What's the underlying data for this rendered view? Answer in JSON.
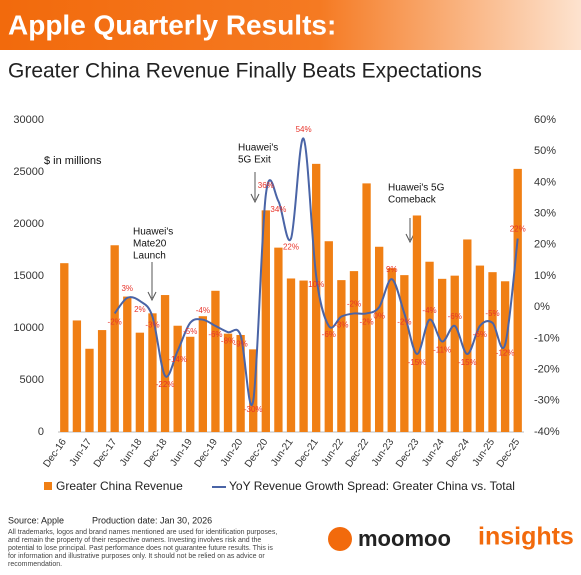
{
  "header": {
    "title": "Apple Quarterly Results:",
    "subtitle": "Greater China Revenue Finally Beats Expectations"
  },
  "chart_data": {
    "type": "bar_line",
    "y_axis_label": "$ in millions",
    "categories": [
      "Dec-16",
      null,
      "Jun-17",
      null,
      "Dec-17",
      null,
      "Jun-18",
      null,
      "Dec-18",
      null,
      "Jun-19",
      null,
      "Dec-19",
      null,
      "Jun-20",
      null,
      "Dec-20",
      null,
      "Jun-21",
      null,
      "Dec-21",
      null,
      "Jun-22",
      null,
      "Dec-22",
      null,
      "Jun-23",
      null,
      "Dec-23",
      null,
      "Jun-24",
      null,
      "Dec-24",
      null,
      "Jun-25",
      null,
      "Dec-25"
    ],
    "ylim": [
      0,
      30000
    ],
    "yticks": [
      0,
      5000,
      10000,
      15000,
      20000,
      25000,
      30000
    ],
    "y2lim": [
      -40,
      60
    ],
    "y2ticks": [
      {
        "value": -40,
        "label": "-40%"
      },
      {
        "value": -30,
        "label": "-30%"
      },
      {
        "value": -20,
        "label": "-20%"
      },
      {
        "value": -10,
        "label": "-10%"
      },
      {
        "value": 0,
        "label": "0%"
      },
      {
        "value": 10,
        "label": "10%"
      },
      {
        "value": 20,
        "label": "20%"
      },
      {
        "value": 30,
        "label": "30%"
      },
      {
        "value": 40,
        "label": "40%"
      },
      {
        "value": 50,
        "label": "50%"
      },
      {
        "value": 60,
        "label": "60%"
      }
    ],
    "series": [
      {
        "name": "Greater China Revenue",
        "type": "bar",
        "color": "#f07f14",
        "values": [
          16233,
          10726,
          8004,
          9801,
          17956,
          13024,
          9551,
          11411,
          13169,
          10218,
          9157,
          11134,
          13578,
          9455,
          9329,
          7946,
          21313,
          17728,
          14762,
          14563,
          25783,
          18343,
          14604,
          15470,
          23905,
          17812,
          15758,
          15084,
          20819,
          16372,
          14728,
          15033,
          18513,
          16002,
          15369,
          14493,
          25300
        ]
      },
      {
        "name": "YoY Revenue Growth Spread: Greater China vs. Total",
        "type": "line",
        "axis": "y2",
        "color": "#4a64a6",
        "values": [
          null,
          null,
          null,
          null,
          -2,
          3,
          2,
          -3,
          -22,
          -14,
          -5,
          -4,
          -6,
          -8,
          -9,
          -30,
          36,
          34,
          22,
          54,
          10,
          -6,
          -3,
          -2,
          -2,
          0,
          9,
          -2,
          -15,
          -4,
          -11,
          -6,
          -15,
          -6,
          -5,
          -12,
          22
        ],
        "value_labels": [
          null,
          null,
          null,
          null,
          "-2%",
          "3%",
          "2%",
          "-3%",
          "-22%",
          "-14%",
          "-5%",
          "-4%",
          "-6%",
          "-8%",
          "-9%",
          "-30%",
          "36%",
          "34%",
          "22%",
          "54%",
          "10%",
          "-6%",
          "-3%",
          "-2%",
          "-2%",
          "0%",
          "9%",
          "-2%",
          "-15%",
          "-4%",
          "-11%",
          "-6%",
          "-15%",
          "-6%",
          "-5%",
          "-12%",
          "22%"
        ],
        "label_color": "#e8332a"
      }
    ],
    "annotations": [
      {
        "lines": [
          "Huawei's",
          "Mate20",
          "Launch"
        ]
      },
      {
        "lines": [
          "Huawei's",
          "5G Exit"
        ]
      },
      {
        "lines": [
          "Huawei's 5G",
          "Comeback"
        ]
      }
    ]
  },
  "footer": {
    "source": "Source: Apple",
    "production_date": "Production date: Jan 30, 2026",
    "disclaimer": [
      "All trademarks, logos and brand names mentioned are used for identification purposes,",
      "and remain the property of their respective owners. Investing involves risk and the",
      "potential to lose principal. Past performance does not guarantee future results. This is",
      "for information and illustrative purposes only. It should not be relied on as advice or",
      "recommendation."
    ],
    "brand": "moomoo",
    "brand_sub": "insights"
  }
}
